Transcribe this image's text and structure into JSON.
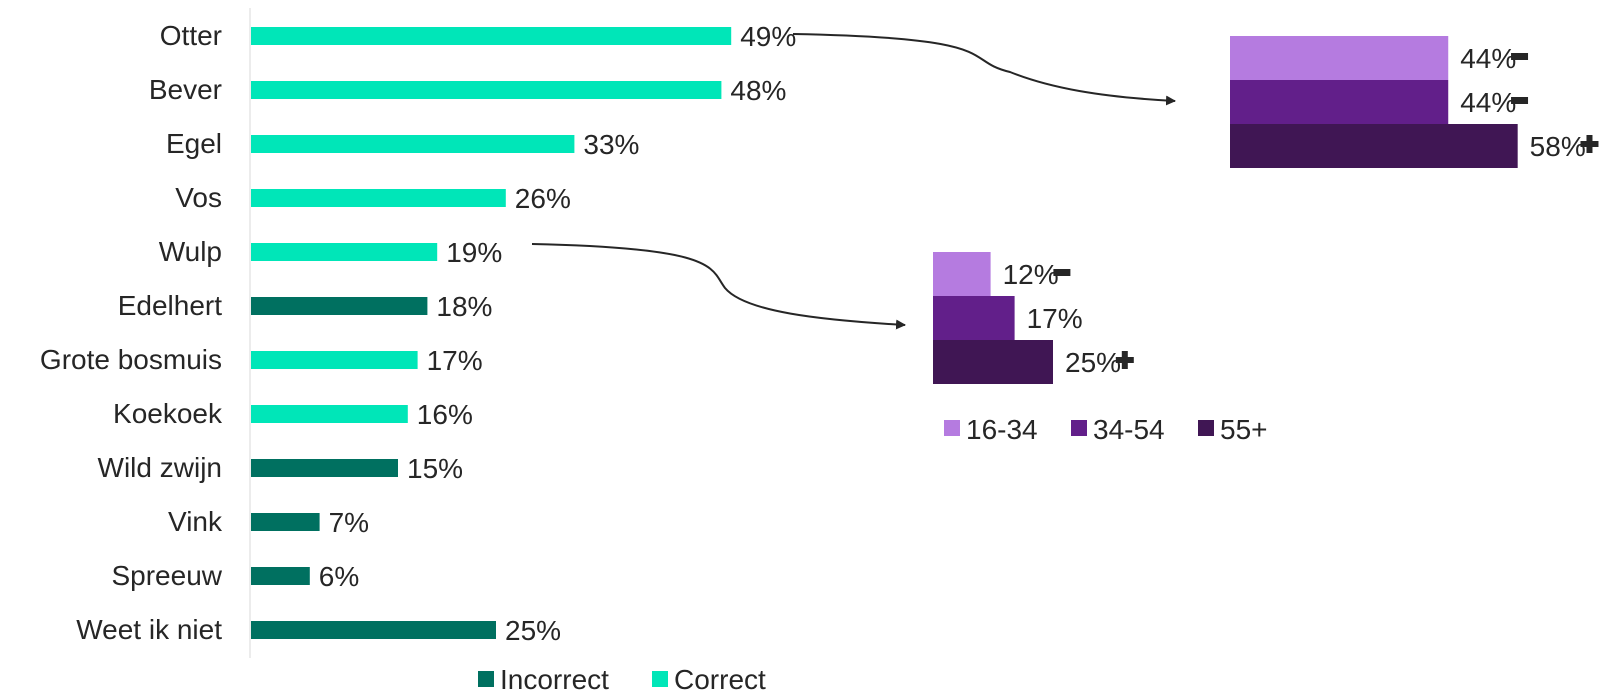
{
  "colors": {
    "correct": "#00E6B8",
    "incorrect": "#007060",
    "age_16_34": "#B57BE0",
    "age_34_54": "#621F8A",
    "age_55_plus": "#401654",
    "text": "#262626",
    "axis": "#d9d9d9"
  },
  "chart_data": [
    {
      "type": "bar",
      "orientation": "horizontal",
      "categories": [
        "Otter",
        "Bever",
        "Egel",
        "Vos",
        "Wulp",
        "Edelhert",
        "Grote bosmuis",
        "Koekoek",
        "Wild zwijn",
        "Vink",
        "Spreeuw",
        "Weet ik niet"
      ],
      "values": [
        49,
        48,
        33,
        26,
        19,
        18,
        17,
        16,
        15,
        7,
        6,
        25
      ],
      "value_labels": [
        "49%",
        "48%",
        "33%",
        "26%",
        "19%",
        "18%",
        "17%",
        "16%",
        "15%",
        "7%",
        "6%",
        "25%"
      ],
      "classification": [
        "Correct",
        "Correct",
        "Correct",
        "Correct",
        "Correct",
        "Incorrect",
        "Correct",
        "Correct",
        "Incorrect",
        "Incorrect",
        "Incorrect",
        "Incorrect"
      ],
      "legend": [
        "Incorrect",
        "Correct"
      ],
      "legend_position": "bottom",
      "xlim": [
        0,
        100
      ],
      "grid": false
    },
    {
      "type": "bar",
      "orientation": "horizontal",
      "detail_of": "Otter",
      "categories": [
        "16-34",
        "34-54",
        "55+"
      ],
      "values": [
        44,
        44,
        58
      ],
      "value_labels": [
        "44%",
        "44%",
        "58%"
      ],
      "significance": [
        "-",
        "-",
        "+"
      ],
      "grid": false
    },
    {
      "type": "bar",
      "orientation": "horizontal",
      "detail_of": "Wulp",
      "categories": [
        "16-34",
        "34-54",
        "55+"
      ],
      "values": [
        12,
        17,
        25
      ],
      "value_labels": [
        "12%",
        "17%",
        "25%"
      ],
      "significance": [
        "-",
        "",
        "+"
      ],
      "legend": [
        "16-34",
        "34-54",
        "55+"
      ],
      "legend_position": "bottom",
      "grid": false
    }
  ]
}
